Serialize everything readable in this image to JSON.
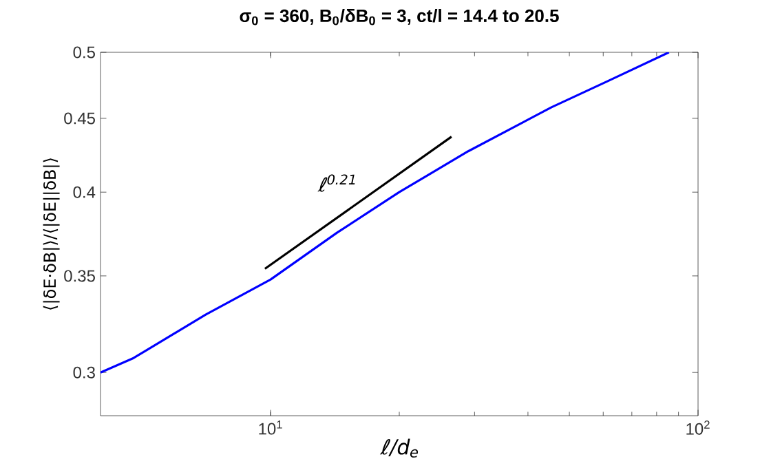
{
  "chart_data": {
    "type": "line",
    "title": "σ$_{0}$ = 360, B$_{0}$/δB$_{0}$ = 3, ct/l = 14.4 to 20.5",
    "xlabel": "ℓ/d$_{e}$",
    "ylabel": "⟨|δE·δB|⟩/⟨|δE||δB|⟩",
    "log": "xy",
    "xlim": [
      4,
      100
    ],
    "ylim": [
      0.28,
      0.5
    ],
    "xticks": [
      {
        "value": 10,
        "label": "10$^{1}$"
      },
      {
        "value": 100,
        "label": "10$^{2}$"
      }
    ],
    "yticks": [
      0.3,
      0.35,
      0.4,
      0.45,
      0.5
    ],
    "series": [
      {
        "color": "#0000ff",
        "x": [
          4,
          4.78,
          7.05,
          10,
          14.3,
          20,
          29,
          45.4,
          61,
          85.5
        ],
        "values": [
          0.3,
          0.307,
          0.329,
          0.348,
          0.375,
          0.4,
          0.427,
          0.458,
          0.477,
          0.5
        ]
      },
      {
        "type": "line",
        "color": "#000000",
        "x": [
          9.7,
          26.5
        ],
        "values": [
          0.354,
          0.437
        ]
      }
    ],
    "annotations": [
      "ℓ$^{0.21}$"
    ]
  }
}
